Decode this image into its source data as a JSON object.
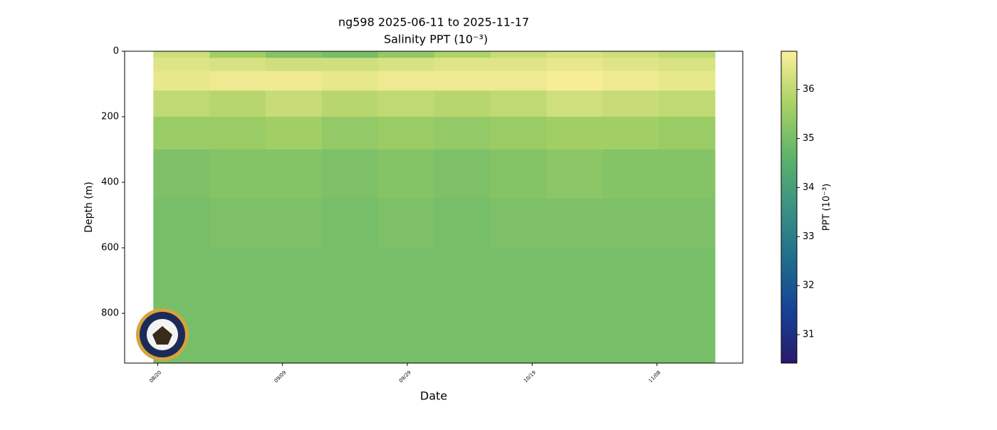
{
  "chart_data": {
    "type": "heatmap",
    "title": "ng598 2025-06-11 to 2025-11-17",
    "subtitle": "Salinity PPT (10⁻³)",
    "x_label": "Date",
    "y_label": "Depth (m)",
    "colorbar_label": "PPT (10⁻³)",
    "xlim": [
      226.7,
      325.75
    ],
    "xticks": [
      {
        "value": 232,
        "label": "08/20"
      },
      {
        "value": 252,
        "label": "09/09"
      },
      {
        "value": 272,
        "label": "09/29"
      },
      {
        "value": 292,
        "label": "10/19"
      },
      {
        "value": 312,
        "label": "11/08"
      }
    ],
    "ylim": [
      0,
      952
    ],
    "invert_y": true,
    "yticks": [
      0,
      200,
      400,
      600,
      800
    ],
    "xbins": [
      231.3,
      240.3,
      249.3,
      258.3,
      267.3,
      276.3,
      285.3,
      294.3,
      303.3,
      312.3,
      321.3
    ],
    "ybins": [
      0,
      20,
      60,
      120,
      200,
      300,
      450,
      600,
      800,
      950
    ],
    "values": [
      [
        36.2,
        35.6,
        35.2,
        35.0,
        35.4,
        35.8,
        36.1,
        36.3,
        36.2,
        36.0
      ],
      [
        36.4,
        36.3,
        36.2,
        36.2,
        36.3,
        36.4,
        36.4,
        36.5,
        36.4,
        36.3
      ],
      [
        36.5,
        36.6,
        36.6,
        36.5,
        36.6,
        36.6,
        36.6,
        36.7,
        36.6,
        36.5
      ],
      [
        36.0,
        35.9,
        36.1,
        35.9,
        36.0,
        35.9,
        36.0,
        36.2,
        36.1,
        36.0
      ],
      [
        35.5,
        35.5,
        35.6,
        35.4,
        35.5,
        35.4,
        35.5,
        35.6,
        35.6,
        35.5
      ],
      [
        35.1,
        35.2,
        35.2,
        35.1,
        35.2,
        35.1,
        35.2,
        35.3,
        35.2,
        35.2
      ],
      [
        35.0,
        35.1,
        35.1,
        35.0,
        35.1,
        35.0,
        35.1,
        35.1,
        35.1,
        35.1
      ],
      [
        35.0,
        35.0,
        35.0,
        35.0,
        35.0,
        35.0,
        35.0,
        35.0,
        35.0,
        35.0
      ],
      [
        35.0,
        35.0,
        35.0,
        35.0,
        35.0,
        35.0,
        35.0,
        35.0,
        35.0,
        35.0
      ]
    ],
    "clim": [
      30.42,
      36.78
    ],
    "cticks": [
      31,
      32,
      33,
      34,
      35,
      36
    ],
    "colormap": [
      "#2a186c",
      "#164196",
      "#1f6e8c",
      "#3a9284",
      "#5fb46a",
      "#a9d265",
      "#fdef9a"
    ]
  }
}
